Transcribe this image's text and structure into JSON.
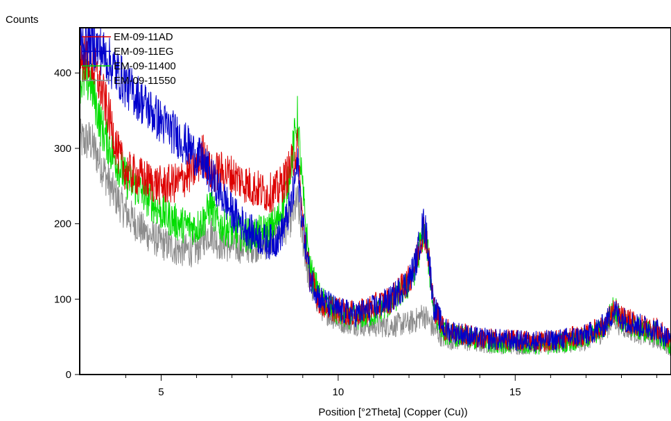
{
  "chart_data": {
    "type": "line",
    "title": "",
    "ylabel": "Counts",
    "xlabel": "Position [°2Theta] (Copper (Cu))",
    "xlim": [
      2.7,
      19.4
    ],
    "ylim": [
      0,
      460
    ],
    "x_ticks_major": [
      5,
      10,
      15
    ],
    "x_ticks_minor": [
      4,
      6,
      7,
      8,
      9,
      11,
      12,
      13,
      14,
      16,
      17,
      18,
      19
    ],
    "y_ticks": [
      0,
      100,
      200,
      300,
      400
    ],
    "legend_position": "top-left",
    "grid": false,
    "series": [
      {
        "name": "EM-09-11AD",
        "color": "#dd0000",
        "x": [
          3.0,
          3.3,
          3.6,
          3.8,
          4.0,
          4.5,
          5.0,
          5.5,
          6.0,
          6.2,
          6.4,
          6.6,
          7.0,
          7.5,
          8.0,
          8.3,
          8.5,
          8.7,
          8.85,
          9.0,
          9.2,
          9.5,
          10.0,
          10.5,
          11.0,
          11.5,
          12.0,
          12.2,
          12.4,
          12.5,
          12.7,
          13.0,
          14.0,
          15.0,
          16.0,
          17.0,
          17.5,
          17.8,
          18.0,
          18.5,
          19.0,
          19.4
        ],
        "y": [
          420,
          380,
          330,
          290,
          270,
          260,
          250,
          255,
          275,
          295,
          265,
          270,
          265,
          250,
          240,
          245,
          260,
          280,
          300,
          200,
          130,
          95,
          85,
          80,
          90,
          100,
          125,
          150,
          195,
          180,
          90,
          60,
          48,
          45,
          45,
          52,
          65,
          85,
          75,
          65,
          60,
          45
        ]
      },
      {
        "name": "EM-09-11EG",
        "color": "#0000cc",
        "x": [
          3.0,
          3.3,
          3.6,
          4.0,
          4.5,
          5.0,
          5.5,
          6.0,
          6.2,
          6.5,
          7.0,
          7.5,
          8.0,
          8.3,
          8.5,
          8.7,
          8.85,
          9.0,
          9.2,
          9.5,
          10.0,
          10.5,
          11.0,
          11.5,
          12.0,
          12.2,
          12.4,
          12.5,
          12.7,
          13.0,
          14.0,
          15.0,
          16.0,
          17.0,
          17.5,
          17.8,
          18.0,
          18.5,
          19.0,
          19.4
        ],
        "y": [
          440,
          430,
          410,
          385,
          360,
          335,
          315,
          290,
          280,
          255,
          215,
          190,
          175,
          180,
          200,
          230,
          280,
          200,
          130,
          100,
          85,
          80,
          88,
          100,
          125,
          150,
          200,
          185,
          90,
          60,
          48,
          45,
          45,
          52,
          65,
          85,
          75,
          65,
          60,
          45
        ]
      },
      {
        "name": "EM-09-11400",
        "color": "#00dd00",
        "x": [
          3.0,
          3.3,
          3.6,
          4.0,
          4.5,
          5.0,
          5.5,
          6.0,
          6.2,
          6.4,
          6.6,
          7.0,
          7.5,
          8.0,
          8.3,
          8.5,
          8.7,
          8.85,
          9.0,
          9.2,
          9.5,
          10.0,
          10.5,
          11.0,
          11.5,
          12.0,
          12.2,
          12.4,
          12.5,
          12.7,
          13.0,
          14.0,
          15.0,
          16.0,
          17.0,
          17.5,
          17.8,
          18.0,
          18.5,
          19.0,
          19.4
        ],
        "y": [
          390,
          330,
          295,
          260,
          240,
          215,
          200,
          195,
          205,
          225,
          200,
          190,
          185,
          190,
          205,
          235,
          290,
          340,
          240,
          140,
          100,
          80,
          75,
          80,
          95,
          120,
          145,
          190,
          175,
          85,
          55,
          45,
          40,
          40,
          48,
          62,
          90,
          72,
          60,
          55,
          35
        ]
      },
      {
        "name": "EM-09-11550",
        "color": "#8c8c8c",
        "x": [
          3.0,
          3.3,
          3.6,
          4.0,
          4.5,
          5.0,
          5.5,
          6.0,
          6.2,
          6.4,
          6.6,
          7.0,
          7.5,
          8.0,
          8.3,
          8.5,
          8.7,
          8.85,
          9.0,
          9.2,
          9.5,
          10.0,
          10.5,
          11.0,
          11.5,
          12.0,
          12.2,
          12.4,
          12.5,
          12.7,
          13.0,
          14.0,
          15.0,
          16.0,
          17.0,
          17.5,
          17.8,
          18.0,
          18.5,
          19.0,
          19.4
        ],
        "y": [
          310,
          280,
          245,
          215,
          190,
          175,
          165,
          165,
          180,
          190,
          175,
          170,
          170,
          175,
          185,
          195,
          210,
          230,
          180,
          120,
          90,
          72,
          68,
          65,
          65,
          68,
          72,
          80,
          75,
          60,
          48,
          42,
          40,
          40,
          45,
          58,
          75,
          65,
          55,
          48,
          38
        ]
      }
    ]
  }
}
